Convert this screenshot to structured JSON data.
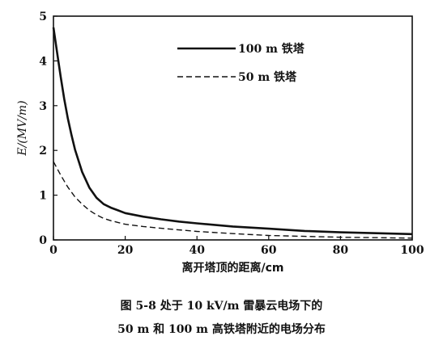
{
  "chart_data": {
    "type": "line",
    "xlabel": "离开塔顶的距离/cm",
    "ylabel": "E/(MV/m)",
    "xlim": [
      0,
      100
    ],
    "ylim": [
      0,
      5
    ],
    "x_ticks": [
      0,
      20,
      40,
      60,
      80,
      100
    ],
    "y_ticks": [
      0,
      1,
      2,
      3,
      4,
      5
    ],
    "legend_position": "top-right",
    "grid": false,
    "series": [
      {
        "name": "100 m 铁塔",
        "style": "solid",
        "x": [
          0,
          1,
          2,
          3,
          4,
          5,
          6,
          8,
          10,
          12,
          14,
          16,
          18,
          20,
          25,
          30,
          35,
          40,
          50,
          60,
          70,
          80,
          90,
          100
        ],
        "y": [
          4.75,
          4.2,
          3.65,
          3.15,
          2.72,
          2.35,
          2.02,
          1.52,
          1.17,
          0.94,
          0.8,
          0.72,
          0.66,
          0.6,
          0.52,
          0.46,
          0.41,
          0.37,
          0.3,
          0.25,
          0.2,
          0.17,
          0.15,
          0.13
        ]
      },
      {
        "name": "50 m 铁塔",
        "style": "dashed",
        "x": [
          0,
          2,
          4,
          6,
          8,
          10,
          12,
          14,
          16,
          18,
          20,
          25,
          30,
          40,
          50,
          60,
          70,
          80,
          90,
          100
        ],
        "y": [
          1.75,
          1.45,
          1.18,
          0.96,
          0.8,
          0.66,
          0.56,
          0.48,
          0.43,
          0.39,
          0.35,
          0.3,
          0.26,
          0.19,
          0.14,
          0.1,
          0.08,
          0.06,
          0.05,
          0.04
        ]
      }
    ]
  },
  "caption": {
    "line1": "图 5-8   处于 10 kV/m 雷暴云电场下的",
    "line2": "50 m 和 100 m 高铁塔附近的电场分布"
  }
}
